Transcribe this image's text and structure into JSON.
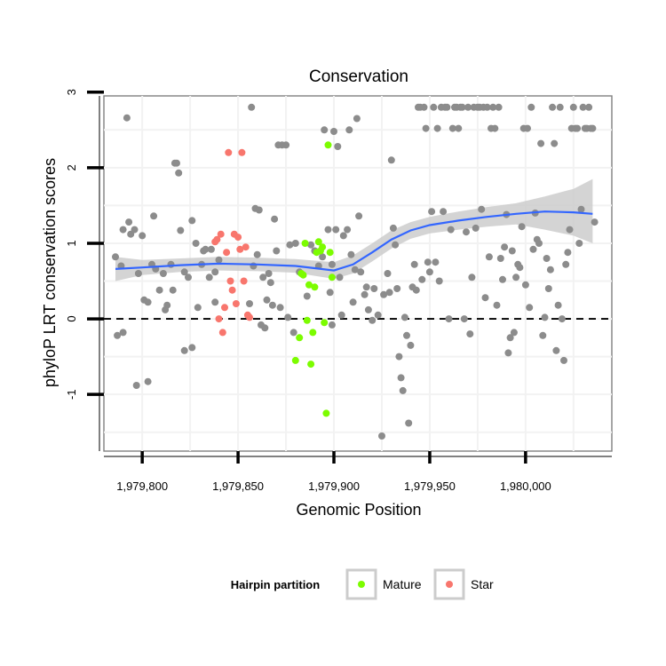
{
  "chart_data": {
    "type": "scatter",
    "title": "Conservation",
    "xlabel": "Genomic Position",
    "ylabel": "phyloP LRT conservation scores",
    "xlim": [
      1979780,
      1980045
    ],
    "ylim": [
      -1.75,
      2.95
    ],
    "x_ticks": [
      1979800,
      1979850,
      1979900,
      1979950,
      1980000
    ],
    "x_tick_labels": [
      "1,979,800",
      "1,979,850",
      "1,979,900",
      "1,979,950",
      "1,980,000"
    ],
    "y_ticks": [
      -1,
      0,
      1,
      2,
      3
    ],
    "y_tick_labels": [
      "-1",
      "0",
      "1",
      "2",
      "3"
    ],
    "grid": true,
    "reference_line": {
      "y": 0,
      "style": "dashed"
    },
    "legend": {
      "title": "Hairpin partition",
      "position": "bottom",
      "entries": [
        {
          "label": "Mature",
          "color": "#7CFC00"
        },
        {
          "label": "Star",
          "color": "#F8766D"
        }
      ]
    },
    "colors": {
      "other": "#8c8c8c",
      "mature": "#7CFC00",
      "star": "#F8766D",
      "smooth": "#3366FF",
      "ribbon": "#cccccc"
    },
    "series": [
      {
        "name": "Other",
        "color": "#8c8c8c",
        "points": [
          [
            1979786,
            0.82
          ],
          [
            1979787,
            -0.22
          ],
          [
            1979789,
            0.7
          ],
          [
            1979790,
            1.18
          ],
          [
            1979790,
            -0.18
          ],
          [
            1979792,
            2.66
          ],
          [
            1979793,
            1.28
          ],
          [
            1979794,
            1.12
          ],
          [
            1979796,
            1.18
          ],
          [
            1979797,
            -0.88
          ],
          [
            1979798,
            0.6
          ],
          [
            1979800,
            1.1
          ],
          [
            1979801,
            0.25
          ],
          [
            1979803,
            -0.83
          ],
          [
            1979803,
            0.22
          ],
          [
            1979805,
            0.72
          ],
          [
            1979806,
            1.36
          ],
          [
            1979807,
            0.66
          ],
          [
            1979809,
            0.38
          ],
          [
            1979811,
            0.6
          ],
          [
            1979812,
            0.12
          ],
          [
            1979813,
            0.18
          ],
          [
            1979815,
            0.72
          ],
          [
            1979816,
            0.38
          ],
          [
            1979817,
            2.06
          ],
          [
            1979818,
            2.06
          ],
          [
            1979819,
            1.93
          ],
          [
            1979820,
            1.17
          ],
          [
            1979822,
            -0.42
          ],
          [
            1979822,
            0.62
          ],
          [
            1979824,
            0.55
          ],
          [
            1979826,
            1.3
          ],
          [
            1979826,
            -0.38
          ],
          [
            1979828,
            1.0
          ],
          [
            1979829,
            0.15
          ],
          [
            1979831,
            0.72
          ],
          [
            1979832,
            0.9
          ],
          [
            1979833,
            0.92
          ],
          [
            1979835,
            0.55
          ],
          [
            1979836,
            0.92
          ],
          [
            1979838,
            0.62
          ],
          [
            1979838,
            0.22
          ],
          [
            1979840,
            0.78
          ],
          [
            1979856,
            0.2
          ],
          [
            1979857,
            2.8
          ],
          [
            1979858,
            0.7
          ],
          [
            1979859,
            1.46
          ],
          [
            1979860,
            0.85
          ],
          [
            1979861,
            1.44
          ],
          [
            1979862,
            -0.08
          ],
          [
            1979863,
            0.55
          ],
          [
            1979864,
            -0.12
          ],
          [
            1979865,
            0.25
          ],
          [
            1979866,
            0.6
          ],
          [
            1979867,
            0.48
          ],
          [
            1979868,
            0.18
          ],
          [
            1979869,
            1.32
          ],
          [
            1979870,
            0.9
          ],
          [
            1979871,
            2.3
          ],
          [
            1979872,
            0.15
          ],
          [
            1979873,
            2.3
          ],
          [
            1979875,
            2.3
          ],
          [
            1979876,
            0.02
          ],
          [
            1979877,
            0.98
          ],
          [
            1979879,
            -0.18
          ],
          [
            1979880,
            1.0
          ],
          [
            1979882,
            0.62
          ],
          [
            1979886,
            0.3
          ],
          [
            1979888,
            0.98
          ],
          [
            1979890,
            0.9
          ],
          [
            1979892,
            0.7
          ],
          [
            1979894,
            0.82
          ],
          [
            1979895,
            2.5
          ],
          [
            1979897,
            1.18
          ],
          [
            1979898,
            0.35
          ],
          [
            1979899,
            0.72
          ],
          [
            1979899,
            -0.08
          ],
          [
            1979900,
            2.48
          ],
          [
            1979901,
            1.18
          ],
          [
            1979902,
            2.28
          ],
          [
            1979903,
            0.55
          ],
          [
            1979904,
            0.05
          ],
          [
            1979905,
            1.1
          ],
          [
            1979907,
            1.18
          ],
          [
            1979908,
            2.5
          ],
          [
            1979909,
            0.85
          ],
          [
            1979910,
            0.22
          ],
          [
            1979911,
            0.65
          ],
          [
            1979912,
            2.65
          ],
          [
            1979913,
            1.36
          ],
          [
            1979914,
            0.62
          ],
          [
            1979916,
            0.32
          ],
          [
            1979917,
            0.42
          ],
          [
            1979918,
            0.12
          ],
          [
            1979920,
            -0.02
          ],
          [
            1979921,
            0.4
          ],
          [
            1979923,
            0.05
          ],
          [
            1979925,
            -1.55
          ],
          [
            1979926,
            0.32
          ],
          [
            1979928,
            0.6
          ],
          [
            1979929,
            0.35
          ],
          [
            1979930,
            2.1
          ],
          [
            1979931,
            1.2
          ],
          [
            1979932,
            0.98
          ],
          [
            1979933,
            0.4
          ],
          [
            1979934,
            -0.5
          ],
          [
            1979935,
            -0.78
          ],
          [
            1979936,
            -0.95
          ],
          [
            1979937,
            0.02
          ],
          [
            1979938,
            -0.22
          ],
          [
            1979939,
            -1.38
          ],
          [
            1979940,
            -0.35
          ],
          [
            1979941,
            0.42
          ],
          [
            1979942,
            0.72
          ],
          [
            1979943,
            0.38
          ],
          [
            1979944,
            2.8
          ],
          [
            1979945,
            2.8
          ],
          [
            1979946,
            0.52
          ],
          [
            1979947,
            2.8
          ],
          [
            1979948,
            2.52
          ],
          [
            1979949,
            0.75
          ],
          [
            1979950,
            0.62
          ],
          [
            1979951,
            1.42
          ],
          [
            1979952,
            2.8
          ],
          [
            1979953,
            0.75
          ],
          [
            1979954,
            2.52
          ],
          [
            1979955,
            0.5
          ],
          [
            1979956,
            2.8
          ],
          [
            1979957,
            1.42
          ],
          [
            1979958,
            2.8
          ],
          [
            1979959,
            2.8
          ],
          [
            1979960,
            0.0
          ],
          [
            1979961,
            1.18
          ],
          [
            1979962,
            2.52
          ],
          [
            1979963,
            2.8
          ],
          [
            1979964,
            2.8
          ],
          [
            1979965,
            2.52
          ],
          [
            1979966,
            2.8
          ],
          [
            1979967,
            2.8
          ],
          [
            1979968,
            0.0
          ],
          [
            1979969,
            1.15
          ],
          [
            1979970,
            2.8
          ],
          [
            1979971,
            -0.2
          ],
          [
            1979972,
            0.55
          ],
          [
            1979973,
            2.8
          ],
          [
            1979974,
            1.2
          ],
          [
            1979975,
            2.8
          ],
          [
            1979976,
            2.8
          ],
          [
            1979977,
            1.45
          ],
          [
            1979978,
            2.8
          ],
          [
            1979979,
            0.28
          ],
          [
            1979980,
            2.8
          ],
          [
            1979981,
            0.82
          ],
          [
            1979982,
            2.52
          ],
          [
            1979983,
            2.8
          ],
          [
            1979984,
            2.52
          ],
          [
            1979985,
            0.18
          ],
          [
            1979986,
            2.8
          ],
          [
            1979987,
            0.8
          ],
          [
            1979988,
            0.52
          ],
          [
            1979989,
            0.95
          ],
          [
            1979990,
            1.38
          ],
          [
            1979991,
            -0.45
          ],
          [
            1979992,
            -0.25
          ],
          [
            1979993,
            0.9
          ],
          [
            1979994,
            -0.18
          ],
          [
            1979995,
            0.55
          ],
          [
            1979996,
            0.72
          ],
          [
            1979997,
            0.68
          ],
          [
            1979998,
            1.22
          ],
          [
            1979999,
            2.52
          ],
          [
            1980000,
            0.45
          ],
          [
            1980001,
            2.52
          ],
          [
            1980002,
            0.15
          ],
          [
            1980003,
            2.8
          ],
          [
            1980004,
            0.92
          ],
          [
            1980005,
            1.4
          ],
          [
            1980006,
            1.05
          ],
          [
            1980007,
            1.0
          ],
          [
            1980008,
            2.32
          ],
          [
            1980009,
            -0.22
          ],
          [
            1980010,
            0.02
          ],
          [
            1980011,
            0.8
          ],
          [
            1980012,
            0.4
          ],
          [
            1980013,
            0.65
          ],
          [
            1980014,
            2.8
          ],
          [
            1980015,
            2.32
          ],
          [
            1980016,
            -0.42
          ],
          [
            1980017,
            0.18
          ],
          [
            1980018,
            2.8
          ],
          [
            1980019,
            0.0
          ],
          [
            1980020,
            -0.55
          ],
          [
            1980021,
            0.72
          ],
          [
            1980022,
            0.88
          ],
          [
            1980023,
            1.18
          ],
          [
            1980024,
            2.52
          ],
          [
            1980025,
            2.8
          ],
          [
            1980026,
            2.52
          ],
          [
            1980027,
            2.52
          ],
          [
            1980028,
            1.0
          ],
          [
            1980029,
            1.45
          ],
          [
            1980030,
            2.8
          ],
          [
            1980031,
            2.52
          ],
          [
            1980032,
            2.52
          ],
          [
            1980033,
            2.8
          ],
          [
            1980034,
            2.52
          ],
          [
            1980035,
            2.52
          ],
          [
            1980036,
            1.28
          ]
        ]
      },
      {
        "name": "Mature",
        "color": "#7CFC00",
        "points": [
          [
            1979880,
            -0.55
          ],
          [
            1979882,
            -0.25
          ],
          [
            1979883,
            0.6
          ],
          [
            1979884,
            0.58
          ],
          [
            1979885,
            1.0
          ],
          [
            1979886,
            -0.02
          ],
          [
            1979887,
            0.45
          ],
          [
            1979888,
            -0.6
          ],
          [
            1979889,
            -0.18
          ],
          [
            1979890,
            0.42
          ],
          [
            1979891,
            0.88
          ],
          [
            1979892,
            1.02
          ],
          [
            1979893,
            0.9
          ],
          [
            1979894,
            0.95
          ],
          [
            1979895,
            -0.05
          ],
          [
            1979896,
            -1.25
          ],
          [
            1979897,
            2.3
          ],
          [
            1979898,
            0.88
          ],
          [
            1979899,
            0.55
          ]
        ]
      },
      {
        "name": "Star",
        "color": "#F8766D",
        "points": [
          [
            1979838,
            1.02
          ],
          [
            1979839,
            1.05
          ],
          [
            1979840,
            0.0
          ],
          [
            1979841,
            1.12
          ],
          [
            1979842,
            -0.18
          ],
          [
            1979843,
            0.15
          ],
          [
            1979844,
            0.88
          ],
          [
            1979845,
            2.2
          ],
          [
            1979846,
            0.5
          ],
          [
            1979847,
            0.38
          ],
          [
            1979848,
            1.12
          ],
          [
            1979849,
            0.2
          ],
          [
            1979850,
            1.08
          ],
          [
            1979851,
            0.92
          ],
          [
            1979852,
            2.2
          ],
          [
            1979853,
            0.5
          ],
          [
            1979854,
            0.95
          ],
          [
            1979855,
            0.05
          ],
          [
            1979856,
            0.02
          ]
        ]
      }
    ],
    "smooth": {
      "label": "loess",
      "x": [
        1979786,
        1979800,
        1979820,
        1979840,
        1979860,
        1979880,
        1979890,
        1979900,
        1979910,
        1979920,
        1979930,
        1979940,
        1979950,
        1979965,
        1979980,
        1979995,
        1980010,
        1980025,
        1980035
      ],
      "y": [
        0.66,
        0.68,
        0.71,
        0.73,
        0.72,
        0.7,
        0.67,
        0.64,
        0.72,
        0.88,
        1.05,
        1.17,
        1.24,
        1.3,
        1.35,
        1.39,
        1.42,
        1.41,
        1.39
      ],
      "lower": [
        0.5,
        0.58,
        0.62,
        0.64,
        0.63,
        0.61,
        0.57,
        0.53,
        0.6,
        0.76,
        0.93,
        1.06,
        1.13,
        1.18,
        1.22,
        1.25,
        1.18,
        1.1,
        1.0
      ],
      "upper": [
        0.82,
        0.78,
        0.8,
        0.82,
        0.81,
        0.79,
        0.77,
        0.75,
        0.84,
        1.0,
        1.17,
        1.28,
        1.35,
        1.42,
        1.48,
        1.53,
        1.62,
        1.72,
        1.85
      ]
    }
  }
}
